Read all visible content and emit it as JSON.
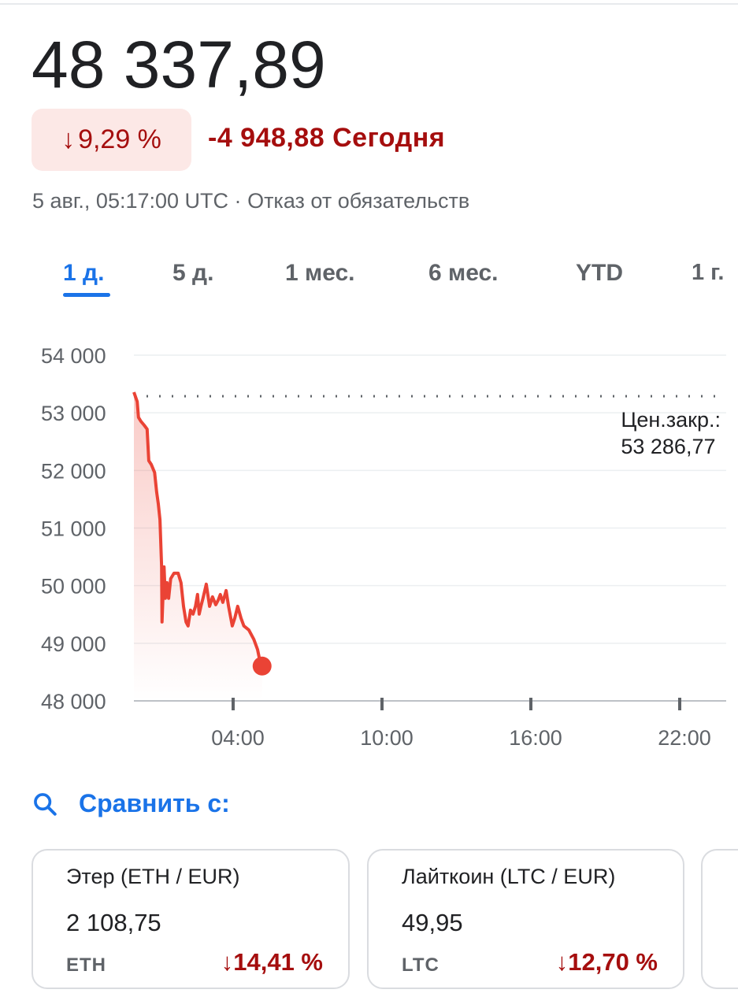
{
  "header": {
    "price": "48 337,89",
    "change_percent": "9,29 %",
    "change_direction": "down",
    "change_abs": "-4 948,88",
    "change_period": "Сегодня",
    "timestamp": "5 авг., 05:17:00 UTC",
    "separator": "·",
    "disclaimer": "Отказ от обязательств"
  },
  "tabs": [
    {
      "label": "1 д.",
      "active": true
    },
    {
      "label": "5 д."
    },
    {
      "label": "1 мес."
    },
    {
      "label": "6 мес."
    },
    {
      "label": "YTD"
    },
    {
      "label": "1 г."
    }
  ],
  "colors": {
    "line": "#ea4335",
    "negative": "#a50e0e",
    "accent": "#1a73e8",
    "badge_bg": "#fce8e6"
  },
  "chart_data": {
    "type": "line",
    "ylim": [
      48000,
      54000
    ],
    "y_ticks": [
      "54 000",
      "53 000",
      "52 000",
      "51 000",
      "50 000",
      "49 000",
      "48 000"
    ],
    "y_tick_values": [
      54000,
      53000,
      52000,
      51000,
      50000,
      49000,
      48000
    ],
    "x_range": [
      "00:00",
      "24:00"
    ],
    "x_ticks": [
      "04:00",
      "10:00",
      "16:00",
      "22:00"
    ],
    "grid": true,
    "previous_close": {
      "label": "Цен.закр.:",
      "value_text": "53 286,77",
      "value": 53286.77
    },
    "points": [
      [
        "00:00",
        53358
      ],
      [
        "00:08",
        53194
      ],
      [
        "00:11",
        52921
      ],
      [
        "00:17",
        52852
      ],
      [
        "00:25",
        52784
      ],
      [
        "00:32",
        52716
      ],
      [
        "00:36",
        52169
      ],
      [
        "00:42",
        52101
      ],
      [
        "00:50",
        51964
      ],
      [
        "00:55",
        51623
      ],
      [
        "00:59",
        51418
      ],
      [
        "01:03",
        51145
      ],
      [
        "01:07",
        50325
      ],
      [
        "01:08",
        49369
      ],
      [
        "01:13",
        50325
      ],
      [
        "01:16",
        49779
      ],
      [
        "01:20",
        50052
      ],
      [
        "01:24",
        49779
      ],
      [
        "01:29",
        50120
      ],
      [
        "01:37",
        50216
      ],
      [
        "01:47",
        50216
      ],
      [
        "01:54",
        50052
      ],
      [
        "02:00",
        49642
      ],
      [
        "02:06",
        49369
      ],
      [
        "02:11",
        49301
      ],
      [
        "02:17",
        49574
      ],
      [
        "02:23",
        49506
      ],
      [
        "02:29",
        49642
      ],
      [
        "02:34",
        49847
      ],
      [
        "02:38",
        49506
      ],
      [
        "02:42",
        49642
      ],
      [
        "02:47",
        49779
      ],
      [
        "02:55",
        50025
      ],
      [
        "03:03",
        49642
      ],
      [
        "03:10",
        49806
      ],
      [
        "03:18",
        49669
      ],
      [
        "03:24",
        49751
      ],
      [
        "03:29",
        49847
      ],
      [
        "03:35",
        49710
      ],
      [
        "03:43",
        49915
      ],
      [
        "03:49",
        49642
      ],
      [
        "03:58",
        49301
      ],
      [
        "04:04",
        49437
      ],
      [
        "04:11",
        49642
      ],
      [
        "04:19",
        49437
      ],
      [
        "04:26",
        49301
      ],
      [
        "04:38",
        49232
      ],
      [
        "04:50",
        49068
      ],
      [
        "04:59",
        48891
      ],
      [
        "05:05",
        48686
      ],
      [
        "05:10",
        48604
      ]
    ]
  },
  "compare": {
    "label": "Сравнить с:",
    "icon": "search-icon",
    "cards": [
      {
        "name": "Этер (ETH / EUR)",
        "price": "2 108,75",
        "symbol": "ETH",
        "change": "14,41 %",
        "direction": "down"
      },
      {
        "name": "Лайткоин (LTC / EUR)",
        "price": "49,95",
        "symbol": "LTC",
        "change": "12,70 %",
        "direction": "down"
      }
    ]
  }
}
